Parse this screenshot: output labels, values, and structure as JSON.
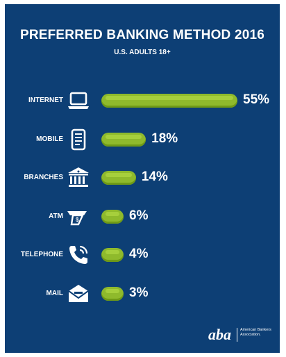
{
  "title": "PREFERRED BANKING METHOD 2016",
  "subtitle": "U.S. ADULTS 18+",
  "colors": {
    "background": "#0d3f75",
    "bar": "#8fba2c",
    "text": "#ffffff"
  },
  "chart_data": {
    "type": "bar",
    "orientation": "horizontal",
    "title": "PREFERRED BANKING METHOD 2016",
    "subtitle": "U.S. ADULTS 18+",
    "categories": [
      "INTERNET",
      "MOBILE",
      "BRANCHES",
      "ATM",
      "TELEPHONE",
      "MAIL"
    ],
    "values": [
      55,
      18,
      14,
      6,
      4,
      3
    ],
    "value_labels": [
      "55%",
      "18%",
      "14%",
      "6%",
      "4%",
      "3%"
    ],
    "icons": [
      "laptop-icon",
      "mobile-phone-icon",
      "bank-building-icon",
      "atm-card-icon",
      "telephone-icon",
      "mail-envelope-icon"
    ],
    "unit": "%",
    "grid": false,
    "legend": "none"
  },
  "logo": {
    "org_name": "American Bankers Association.",
    "mark": "aba"
  }
}
